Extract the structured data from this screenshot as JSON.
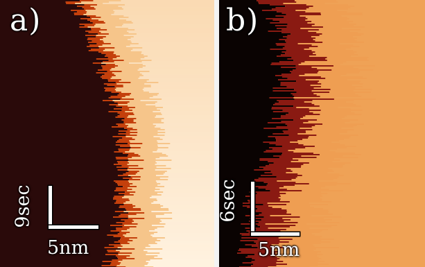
{
  "figure": {
    "panels": [
      {
        "label": "a)",
        "time_scale": "9sec",
        "length_scale": "5nm",
        "colors": {
          "dark": "#2a0a0a",
          "mid": "#c4400c",
          "light": "#f6c58a",
          "bright": "#fff4e4"
        }
      },
      {
        "label": "b)",
        "time_scale": "6sec",
        "length_scale": "5nm",
        "colors": {
          "dark": "#0a0302",
          "mid": "#8a1a12",
          "light": "#ef9e52",
          "bright": "#f2a95e"
        }
      }
    ]
  }
}
